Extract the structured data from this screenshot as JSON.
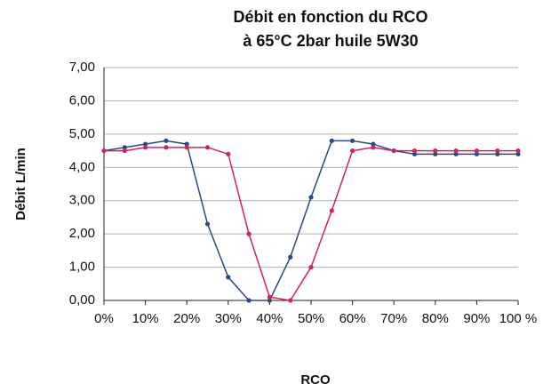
{
  "chart_data": {
    "type": "line",
    "title": "Débit en fonction du RCO",
    "subtitle": "à 65°C 2bar huile 5W30",
    "xlabel": "RCO",
    "ylabel": "Débit L/min",
    "x": [
      0,
      5,
      10,
      15,
      20,
      25,
      30,
      35,
      40,
      45,
      50,
      55,
      60,
      65,
      70,
      75,
      80,
      85,
      90,
      95,
      100
    ],
    "series": [
      {
        "color": "#2a4a7f",
        "values": [
          4.5,
          4.6,
          4.7,
          4.8,
          4.7,
          2.3,
          0.7,
          0.0,
          0.0,
          1.3,
          3.1,
          4.8,
          4.8,
          4.7,
          4.5,
          4.4,
          4.4,
          4.4,
          4.4,
          4.4,
          4.4
        ]
      },
      {
        "color": "#d6205e",
        "values": [
          4.5,
          4.5,
          4.6,
          4.6,
          4.6,
          4.6,
          4.4,
          2.0,
          0.1,
          0.0,
          1.0,
          2.7,
          4.5,
          4.6,
          4.5,
          4.5,
          4.5,
          4.5,
          4.5,
          4.5,
          4.5
        ]
      }
    ],
    "xlim": [
      0,
      100
    ],
    "xticks": [
      {
        "value": 0,
        "label": "0%"
      },
      {
        "value": 10,
        "label": "10%"
      },
      {
        "value": 20,
        "label": "20%"
      },
      {
        "value": 30,
        "label": "30%"
      },
      {
        "value": 40,
        "label": "40%"
      },
      {
        "value": 50,
        "label": "50%"
      },
      {
        "value": 60,
        "label": "60%"
      },
      {
        "value": 70,
        "label": "70%"
      },
      {
        "value": 80,
        "label": "80%"
      },
      {
        "value": 90,
        "label": "90%"
      },
      {
        "value": 100,
        "label": "100 %"
      }
    ],
    "ylim": [
      0,
      7
    ],
    "yticks": [
      {
        "value": 0,
        "label": "0,00"
      },
      {
        "value": 1,
        "label": "1,00"
      },
      {
        "value": 2,
        "label": "2,00"
      },
      {
        "value": 3,
        "label": "3,00"
      },
      {
        "value": 4,
        "label": "4,00"
      },
      {
        "value": 5,
        "label": "5,00"
      },
      {
        "value": 6,
        "label": "6,00"
      },
      {
        "value": 7,
        "label": "7,00"
      }
    ],
    "grid": true
  }
}
